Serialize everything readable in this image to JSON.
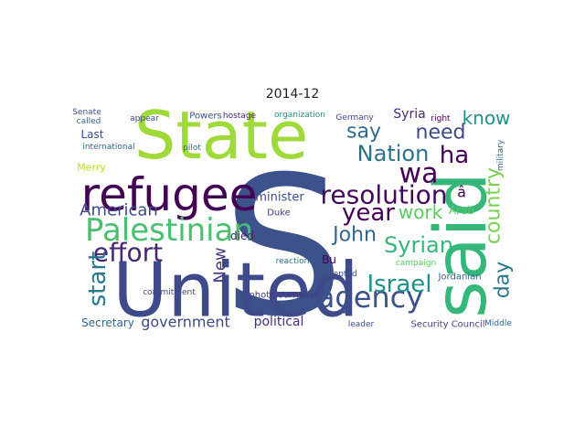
{
  "title": "2014-12",
  "words": [
    {
      "text": "State",
      "color": "#9fda3a"
    },
    {
      "text": "S",
      "color": "#3b528b"
    },
    {
      "text": "United",
      "color": "#3e4a89"
    },
    {
      "text": "said",
      "color": "#35b779"
    },
    {
      "text": "refugee",
      "color": "#440154"
    },
    {
      "text": "Palestinian",
      "color": "#48c16e"
    },
    {
      "text": "resolution",
      "color": "#46085c"
    },
    {
      "text": "agency",
      "color": "#3b528b"
    },
    {
      "text": "Nation",
      "color": "#2c728e"
    },
    {
      "text": "wa",
      "color": "#440154"
    },
    {
      "text": "say",
      "color": "#31688e"
    },
    {
      "text": "need",
      "color": "#3e4989"
    },
    {
      "text": "ha",
      "color": "#440154"
    },
    {
      "text": "know",
      "color": "#21918c"
    },
    {
      "text": "year",
      "color": "#440154"
    },
    {
      "text": "American",
      "color": "#3e4989"
    },
    {
      "text": "effort",
      "color": "#482475"
    },
    {
      "text": "start",
      "color": "#2a788e"
    },
    {
      "text": "John",
      "color": "#31688e"
    },
    {
      "text": "work",
      "color": "#5ec962"
    },
    {
      "text": "Syrian",
      "color": "#35b779"
    },
    {
      "text": "country",
      "color": "#7ad151"
    },
    {
      "text": "Israel",
      "color": "#21918c"
    },
    {
      "text": "day",
      "color": "#2a788e"
    },
    {
      "text": "government",
      "color": "#3e4989"
    },
    {
      "text": "Secretary",
      "color": "#31688e"
    },
    {
      "text": "political",
      "color": "#472d7b"
    },
    {
      "text": "Security Council",
      "color": "#414487"
    },
    {
      "text": "Syria",
      "color": "#482878"
    },
    {
      "text": "Last",
      "color": "#3b528b"
    },
    {
      "text": "Arab",
      "color": "#5ec962"
    },
    {
      "text": "minister",
      "color": "#3e4989"
    },
    {
      "text": "Jordanian",
      "color": "#31688e"
    },
    {
      "text": "photojournalist",
      "color": "#443a83"
    },
    {
      "text": "New",
      "color": "#433e85"
    },
    {
      "text": "Bu",
      "color": "#440154"
    },
    {
      "text": "â",
      "color": "#440154"
    },
    {
      "text": "Merry",
      "color": "#b5de2b"
    },
    {
      "text": "international",
      "color": "#31688e"
    },
    {
      "text": "died",
      "color": "#481f70"
    },
    {
      "text": "accepted",
      "color": "#3b528b"
    },
    {
      "text": "reaction",
      "color": "#2c728e"
    },
    {
      "text": "commitment",
      "color": "#3e4989"
    },
    {
      "text": "Duke",
      "color": "#443a83"
    },
    {
      "text": "Powers",
      "color": "#3b528b"
    },
    {
      "text": "hostage",
      "color": "#482878"
    },
    {
      "text": "organization",
      "color": "#21918c"
    },
    {
      "text": "Germany",
      "color": "#3e4989"
    },
    {
      "text": "pilot",
      "color": "#31688e"
    },
    {
      "text": "campaign",
      "color": "#5ec962"
    },
    {
      "text": "Middle",
      "color": "#31688e"
    },
    {
      "text": "right",
      "color": "#440154"
    },
    {
      "text": "Senate",
      "color": "#3b528b"
    },
    {
      "text": "called",
      "color": "#31688e"
    },
    {
      "text": "appear",
      "color": "#3e4989"
    },
    {
      "text": "leader",
      "color": "#3b528b"
    },
    {
      "text": "military",
      "color": "#31688e"
    }
  ]
}
